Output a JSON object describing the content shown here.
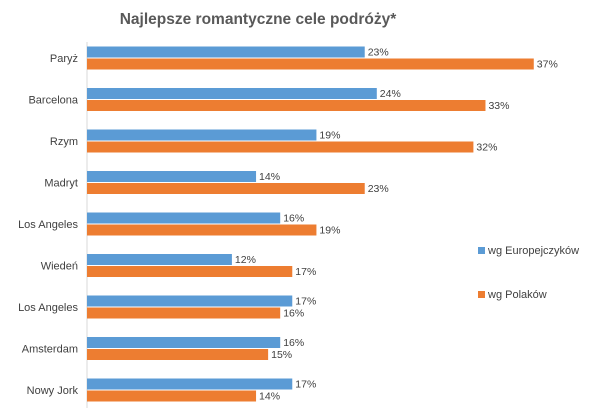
{
  "chart_data": {
    "type": "bar",
    "orientation": "horizontal",
    "title": "Najlepsze romantyczne cele podróży*",
    "categories": [
      "Paryż",
      "Barcelona",
      "Rzym",
      "Madryt",
      "Los Angeles",
      "Wiedeń",
      "Los Angeles",
      "Amsterdam",
      "Nowy Jork"
    ],
    "series": [
      {
        "name": "wg Europejczyków",
        "color": "#5B9BD5",
        "values": [
          23,
          24,
          19,
          14,
          16,
          12,
          17,
          16,
          17
        ]
      },
      {
        "name": "wg Polaków",
        "color": "#ED7D31",
        "values": [
          37,
          33,
          32,
          23,
          19,
          17,
          16,
          15,
          14
        ]
      }
    ],
    "value_suffix": "%",
    "xlim": [
      0,
      40
    ],
    "grid": false,
    "legend_position": "right"
  }
}
